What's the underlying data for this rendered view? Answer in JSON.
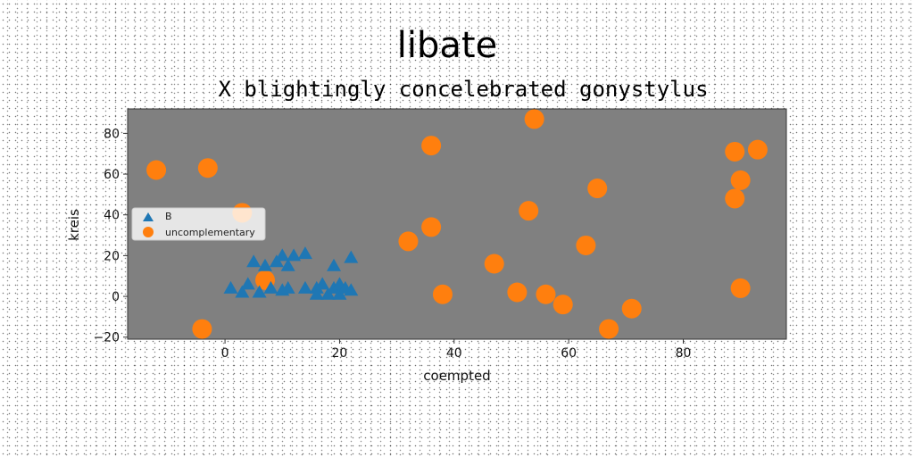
{
  "chart_data": {
    "type": "scatter",
    "title": "libate",
    "subtitle": "X blightingly concelebrated gonystylus",
    "xlabel": "coempted",
    "ylabel": "kreis",
    "xlim": [
      -17,
      98
    ],
    "ylim": [
      -21,
      92
    ],
    "xticks": [
      0,
      20,
      40,
      60,
      80
    ],
    "yticks": [
      -20,
      0,
      20,
      40,
      60,
      80
    ],
    "grid": false,
    "legend_position": "center-left",
    "plot_background": "#808080",
    "series": [
      {
        "name": "B",
        "marker": "triangle",
        "color": "#1f77b4",
        "points": [
          [
            1,
            4
          ],
          [
            3,
            2
          ],
          [
            4,
            6
          ],
          [
            5,
            17
          ],
          [
            6,
            2
          ],
          [
            7,
            15
          ],
          [
            8,
            4
          ],
          [
            9,
            17
          ],
          [
            10,
            20
          ],
          [
            10,
            3
          ],
          [
            11,
            15
          ],
          [
            11,
            4
          ],
          [
            12,
            20
          ],
          [
            14,
            4
          ],
          [
            14,
            21
          ],
          [
            16,
            4
          ],
          [
            16,
            1
          ],
          [
            17,
            6
          ],
          [
            18,
            1
          ],
          [
            19,
            4
          ],
          [
            19,
            15
          ],
          [
            20,
            1
          ],
          [
            20,
            6
          ],
          [
            21,
            4
          ],
          [
            22,
            3
          ],
          [
            22,
            19
          ]
        ]
      },
      {
        "name": "uncomplementary",
        "marker": "circle",
        "color": "#ff7f0e",
        "points": [
          [
            -12,
            62
          ],
          [
            -3,
            63
          ],
          [
            -4,
            -16
          ],
          [
            3,
            41
          ],
          [
            7,
            8
          ],
          [
            32,
            27
          ],
          [
            36,
            74
          ],
          [
            36,
            34
          ],
          [
            38,
            1
          ],
          [
            47,
            16
          ],
          [
            51,
            2
          ],
          [
            53,
            42
          ],
          [
            54,
            87
          ],
          [
            56,
            1
          ],
          [
            59,
            -4
          ],
          [
            63,
            25
          ],
          [
            65,
            53
          ],
          [
            67,
            -16
          ],
          [
            71,
            -6
          ],
          [
            89,
            71
          ],
          [
            89,
            48
          ],
          [
            90,
            57
          ],
          [
            90,
            4
          ],
          [
            93,
            72
          ]
        ]
      }
    ]
  }
}
